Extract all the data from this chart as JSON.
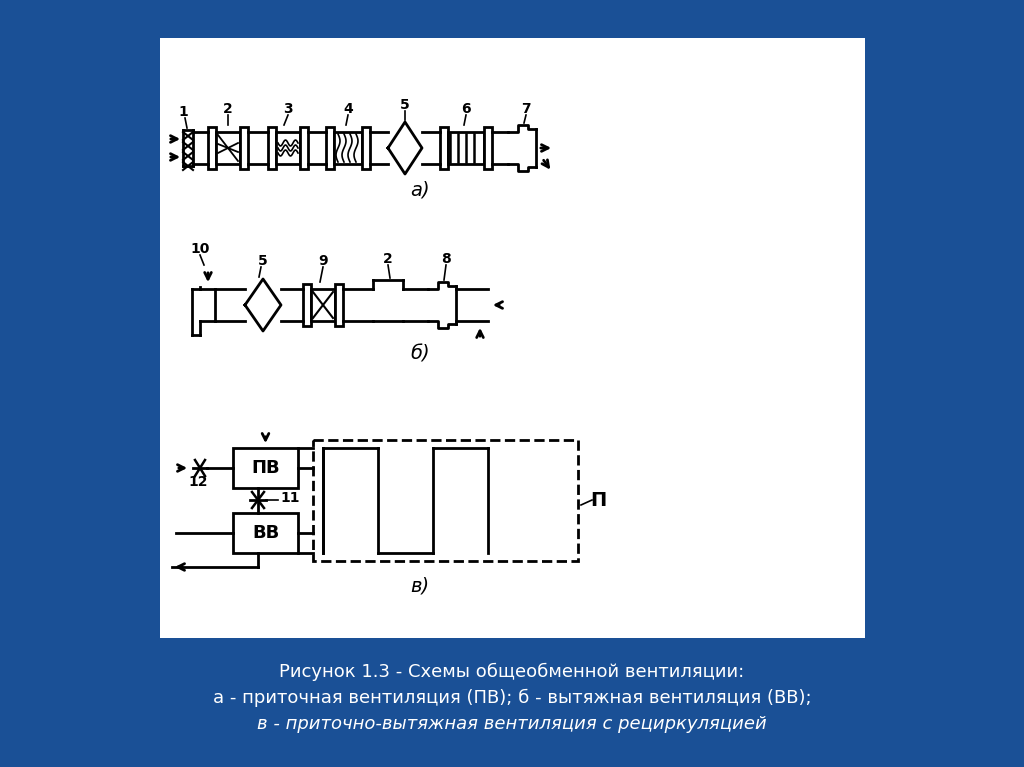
{
  "bg_color": "#1a5096",
  "panel_bg": "#ffffff",
  "line_color": "#000000",
  "title1": "Рисунок 1.3 - Схемы общеобменной вентиляции:",
  "title2": "а - приточная вентиляция (ПВ); б - вытяжная вентиляция (ВВ);",
  "title3": "в - приточно-вытяжная вентиляция с рециркуляцией",
  "label_a": "а)",
  "label_b": "б)",
  "label_v": "в)"
}
